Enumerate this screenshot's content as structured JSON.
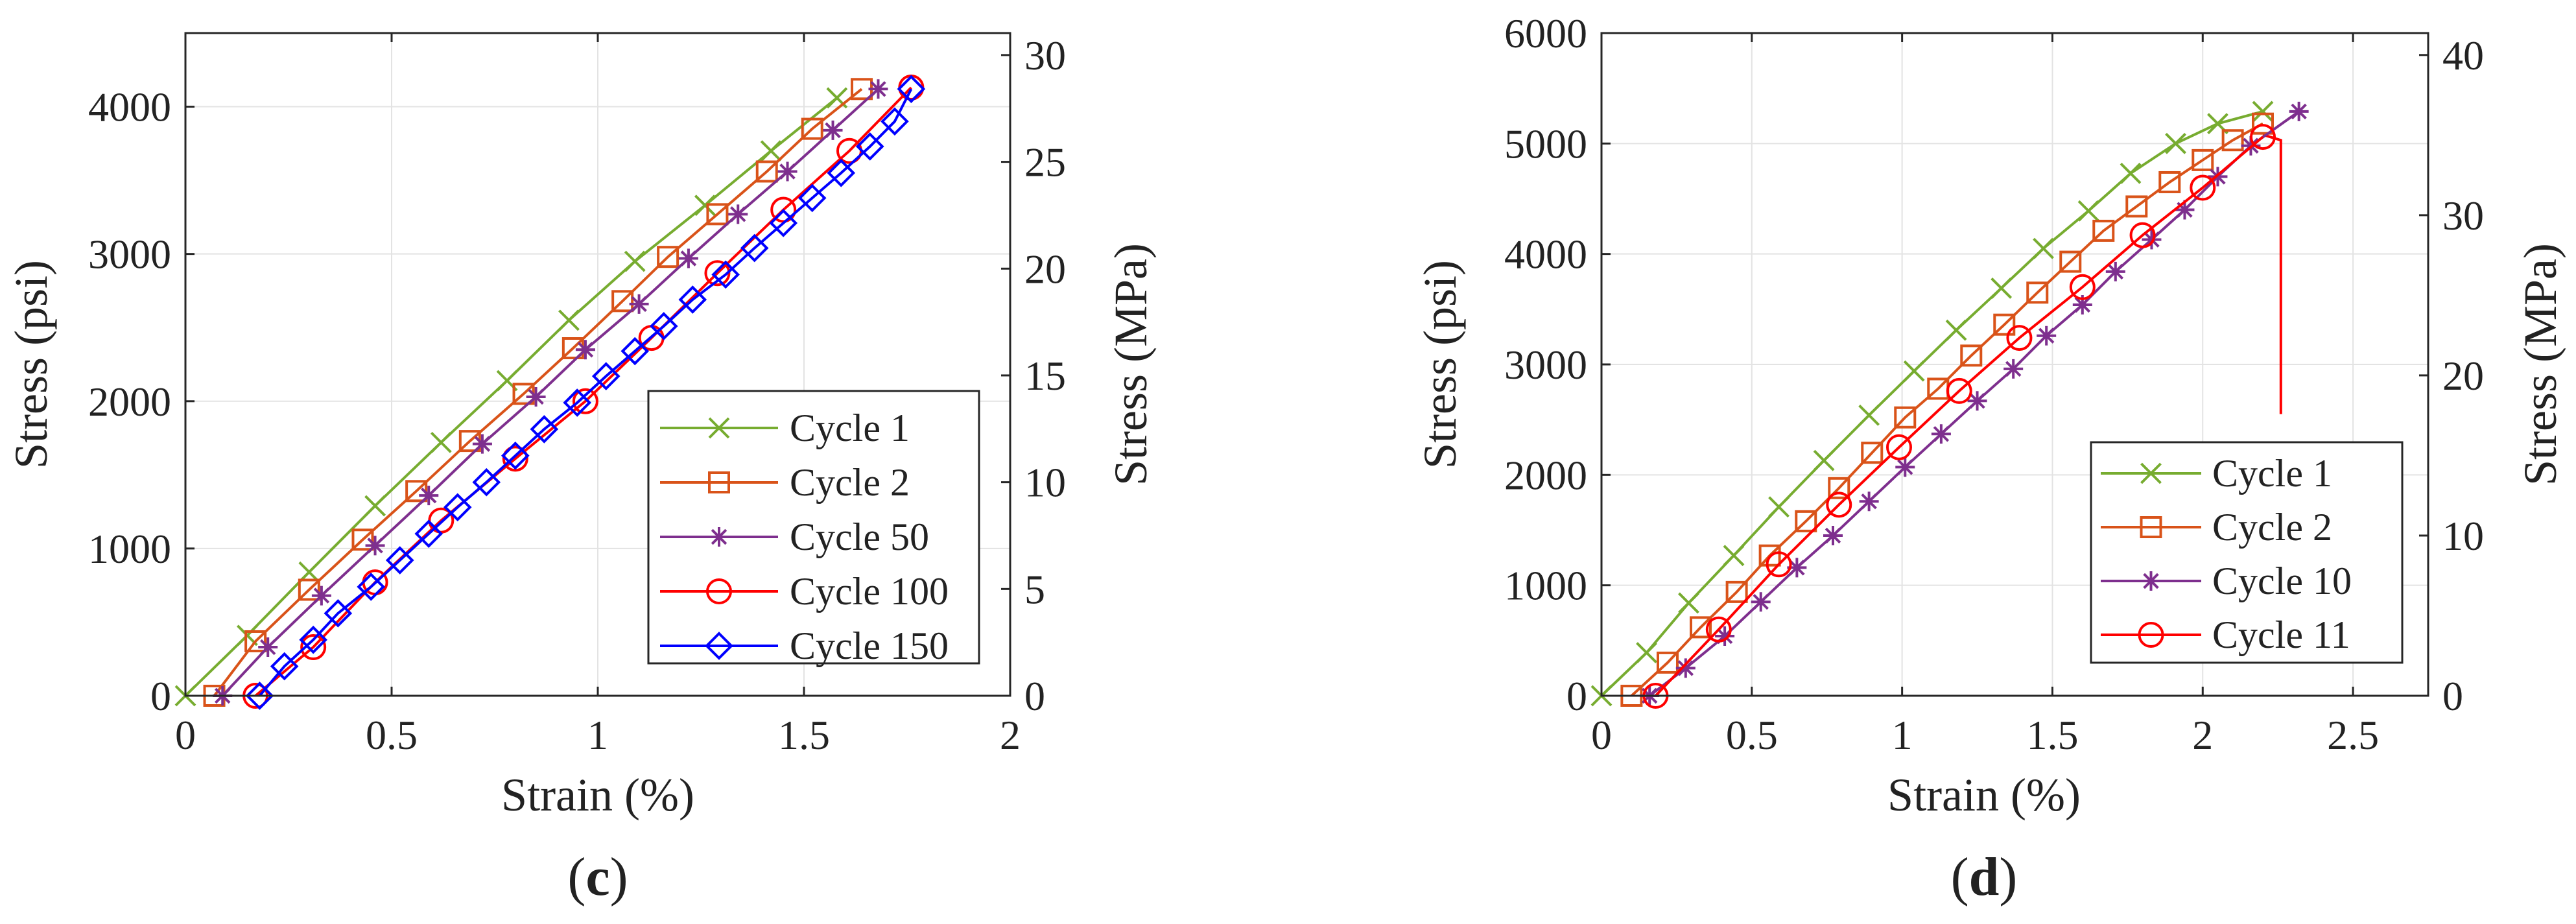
{
  "colors": {
    "cycle_1": "#77AC30",
    "cycle_2": "#D95319",
    "cycle_50": "#7E2F8E",
    "cycle_10": "#7E2F8E",
    "cycle_100": "#FF0000",
    "cycle_11": "#FF0000",
    "cycle_150": "#0000FF",
    "grid": "#E3E3E3",
    "axis": "#262626"
  },
  "chart_data": [
    {
      "id": "c",
      "type": "line",
      "panel_label": "c",
      "xlabel": "Strain (%)",
      "ylabel": "Stress (psi)",
      "ylabel_right": "Stress (MPa)",
      "xlim": [
        0,
        2
      ],
      "ylim": [
        0,
        4500
      ],
      "ylim_right": [
        0,
        31.03
      ],
      "xticks": [
        0,
        0.5,
        1,
        1.5,
        2
      ],
      "xtick_labels": [
        "0",
        "0.5",
        "1",
        "1.5",
        "2"
      ],
      "yticks": [
        0,
        1000,
        2000,
        3000,
        4000
      ],
      "ytick_labels": [
        "0",
        "1000",
        "2000",
        "3000",
        "4000"
      ],
      "yticks_right": [
        0,
        5,
        10,
        15,
        20,
        25,
        30
      ],
      "ytick_right_labels": [
        "0",
        "5",
        "10",
        "15",
        "20",
        "25",
        "30"
      ],
      "grid": true,
      "legend_position": "bottom-right",
      "series": [
        {
          "name": "Cycle 1",
          "marker": "x",
          "color_key": "cycle_1",
          "x": [
            0.0,
            0.15,
            0.3,
            0.46,
            0.62,
            0.78,
            0.93,
            1.09,
            1.26,
            1.42,
            1.58
          ],
          "y": [
            0,
            410,
            840,
            1290,
            1720,
            2140,
            2550,
            2950,
            3330,
            3700,
            4060
          ]
        },
        {
          "name": "Cycle 2",
          "marker": "square",
          "color_key": "cycle_2",
          "x": [
            0.07,
            0.17,
            0.3,
            0.43,
            0.56,
            0.69,
            0.82,
            0.94,
            1.06,
            1.17,
            1.29,
            1.41,
            1.52,
            1.64
          ],
          "y": [
            0,
            370,
            720,
            1060,
            1390,
            1730,
            2050,
            2360,
            2680,
            2980,
            3270,
            3560,
            3850,
            4120
          ]
        },
        {
          "name": "Cycle 50",
          "marker": "star",
          "color_key": "cycle_50",
          "x": [
            0.09,
            0.2,
            0.33,
            0.46,
            0.59,
            0.72,
            0.85,
            0.97,
            1.1,
            1.22,
            1.34,
            1.46,
            1.57,
            1.68
          ],
          "y": [
            0,
            330,
            680,
            1020,
            1360,
            1710,
            2030,
            2350,
            2660,
            2970,
            3270,
            3560,
            3840,
            4120
          ]
        },
        {
          "name": "Cycle 100",
          "marker": "circle",
          "color_key": "cycle_100",
          "x": [
            0.17,
            0.31,
            0.46,
            0.62,
            0.8,
            0.97,
            1.13,
            1.29,
            1.45,
            1.61,
            1.76
          ],
          "y": [
            0,
            330,
            770,
            1190,
            1610,
            2000,
            2430,
            2870,
            3300,
            3700,
            4130
          ]
        },
        {
          "name": "Cycle 150",
          "marker": "diamond",
          "color_key": "cycle_150",
          "x": [
            0.18,
            0.24,
            0.31,
            0.37,
            0.45,
            0.52,
            0.59,
            0.66,
            0.73,
            0.8,
            0.87,
            0.95,
            1.02,
            1.09,
            1.16,
            1.23,
            1.31,
            1.38,
            1.45,
            1.52,
            1.59,
            1.66,
            1.72,
            1.76
          ],
          "y": [
            0,
            200,
            380,
            560,
            740,
            920,
            1100,
            1280,
            1450,
            1630,
            1810,
            1990,
            2170,
            2340,
            2510,
            2690,
            2860,
            3040,
            3210,
            3380,
            3550,
            3730,
            3900,
            4120
          ]
        }
      ]
    },
    {
      "id": "d",
      "type": "line",
      "panel_label": "d",
      "xlabel": "Strain (%)",
      "ylabel": "Stress (psi)",
      "ylabel_right": "Stress (MPa)",
      "xlim": [
        0,
        2.75
      ],
      "ylim": [
        0,
        6000
      ],
      "ylim_right": [
        0,
        41.37
      ],
      "xticks": [
        0,
        0.5,
        1,
        1.5,
        2,
        2.5
      ],
      "xtick_labels": [
        "0",
        "0.5",
        "1",
        "1.5",
        "2",
        "2.5"
      ],
      "yticks": [
        0,
        1000,
        2000,
        3000,
        4000,
        5000,
        6000
      ],
      "ytick_labels": [
        "0",
        "1000",
        "2000",
        "3000",
        "4000",
        "5000",
        "6000"
      ],
      "yticks_right": [
        0,
        10,
        20,
        30,
        40
      ],
      "ytick_right_labels": [
        "0",
        "10",
        "20",
        "30",
        "40"
      ],
      "grid": true,
      "legend_position": "bottom-right",
      "failure_drop": {
        "color_key": "cycle_11",
        "x": [
          2.2,
          2.26,
          2.26
        ],
        "y": [
          5080,
          5030,
          2550
        ]
      },
      "series": [
        {
          "name": "Cycle 1",
          "marker": "x",
          "color_key": "cycle_1",
          "x": [
            0.0,
            0.15,
            0.29,
            0.44,
            0.59,
            0.74,
            0.89,
            1.04,
            1.18,
            1.33,
            1.47,
            1.62,
            1.76,
            1.91,
            2.05,
            2.2
          ],
          "y": [
            0,
            390,
            840,
            1270,
            1710,
            2130,
            2540,
            2940,
            3310,
            3690,
            4050,
            4390,
            4730,
            5000,
            5180,
            5290
          ]
        },
        {
          "name": "Cycle 2",
          "marker": "square",
          "color_key": "cycle_2",
          "x": [
            0.1,
            0.22,
            0.33,
            0.45,
            0.56,
            0.68,
            0.79,
            0.9,
            1.01,
            1.12,
            1.23,
            1.34,
            1.45,
            1.56,
            1.67,
            1.78,
            1.89,
            2.0,
            2.1,
            2.2
          ],
          "y": [
            0,
            300,
            620,
            940,
            1270,
            1580,
            1880,
            2200,
            2520,
            2780,
            3080,
            3360,
            3650,
            3930,
            4210,
            4430,
            4650,
            4850,
            5030,
            5180
          ]
        },
        {
          "name": "Cycle 10",
          "marker": "star",
          "color_key": "cycle_10",
          "x": [
            0.16,
            0.28,
            0.41,
            0.53,
            0.65,
            0.77,
            0.89,
            1.01,
            1.13,
            1.25,
            1.37,
            1.48,
            1.6,
            1.71,
            1.83,
            1.94,
            2.05,
            2.16,
            2.32
          ],
          "y": [
            0,
            250,
            540,
            850,
            1160,
            1450,
            1760,
            2070,
            2370,
            2670,
            2960,
            3260,
            3540,
            3840,
            4130,
            4400,
            4700,
            4980,
            5290
          ]
        },
        {
          "name": "Cycle 11",
          "marker": "circle",
          "color_key": "cycle_11",
          "x": [
            0.18,
            0.39,
            0.59,
            0.79,
            0.99,
            1.19,
            1.39,
            1.6,
            1.8,
            2.0,
            2.2
          ],
          "y": [
            0,
            600,
            1190,
            1730,
            2250,
            2760,
            3240,
            3700,
            4170,
            4600,
            5060
          ]
        }
      ]
    }
  ]
}
